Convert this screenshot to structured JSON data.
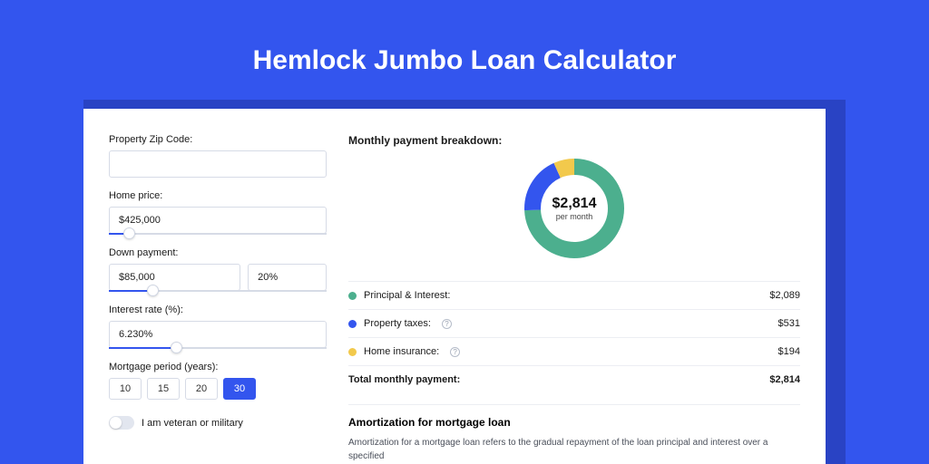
{
  "colors": {
    "page_bg": "#3355ee",
    "shadow_bg": "#2943c4",
    "card_bg": "#ffffff",
    "input_border": "#d6dbe6",
    "text": "#1a1a1a",
    "divider": "#eceef3"
  },
  "header": {
    "title": "Hemlock Jumbo Loan Calculator"
  },
  "form": {
    "zip": {
      "label": "Property Zip Code:",
      "value": ""
    },
    "home_price": {
      "label": "Home price:",
      "value": "$425,000",
      "slider": {
        "fill_pct": 9,
        "thumb_pct": 9
      }
    },
    "down_payment": {
      "label": "Down payment:",
      "amount": "$85,000",
      "percent": "20%",
      "slider": {
        "fill_pct": 20,
        "thumb_pct": 20
      }
    },
    "interest_rate": {
      "label": "Interest rate (%):",
      "value": "6.230%",
      "slider": {
        "fill_pct": 31,
        "thumb_pct": 31
      }
    },
    "mortgage_period": {
      "label": "Mortgage period (years):",
      "options": [
        "10",
        "15",
        "20",
        "30"
      ],
      "selected": "30"
    },
    "veteran": {
      "label": "I am veteran or military",
      "checked": false
    }
  },
  "breakdown": {
    "title": "Monthly payment breakdown:",
    "donut": {
      "amount": "$2,814",
      "sub": "per month",
      "segments": [
        {
          "color": "#4caf8e",
          "value": 2089
        },
        {
          "color": "#3355ee",
          "value": 531
        },
        {
          "color": "#f2c94c",
          "value": 194
        }
      ],
      "stroke_width": 18,
      "radius": 46
    },
    "rows": [
      {
        "dot_color": "#4caf8e",
        "label": "Principal & Interest:",
        "info": false,
        "value": "$2,089"
      },
      {
        "dot_color": "#3355ee",
        "label": "Property taxes:",
        "info": true,
        "value": "$531"
      },
      {
        "dot_color": "#f2c94c",
        "label": "Home insurance:",
        "info": true,
        "value": "$194"
      }
    ],
    "total": {
      "label": "Total monthly payment:",
      "value": "$2,814"
    }
  },
  "amortization": {
    "title": "Amortization for mortgage loan",
    "text": "Amortization for a mortgage loan refers to the gradual repayment of the loan principal and interest over a specified"
  }
}
